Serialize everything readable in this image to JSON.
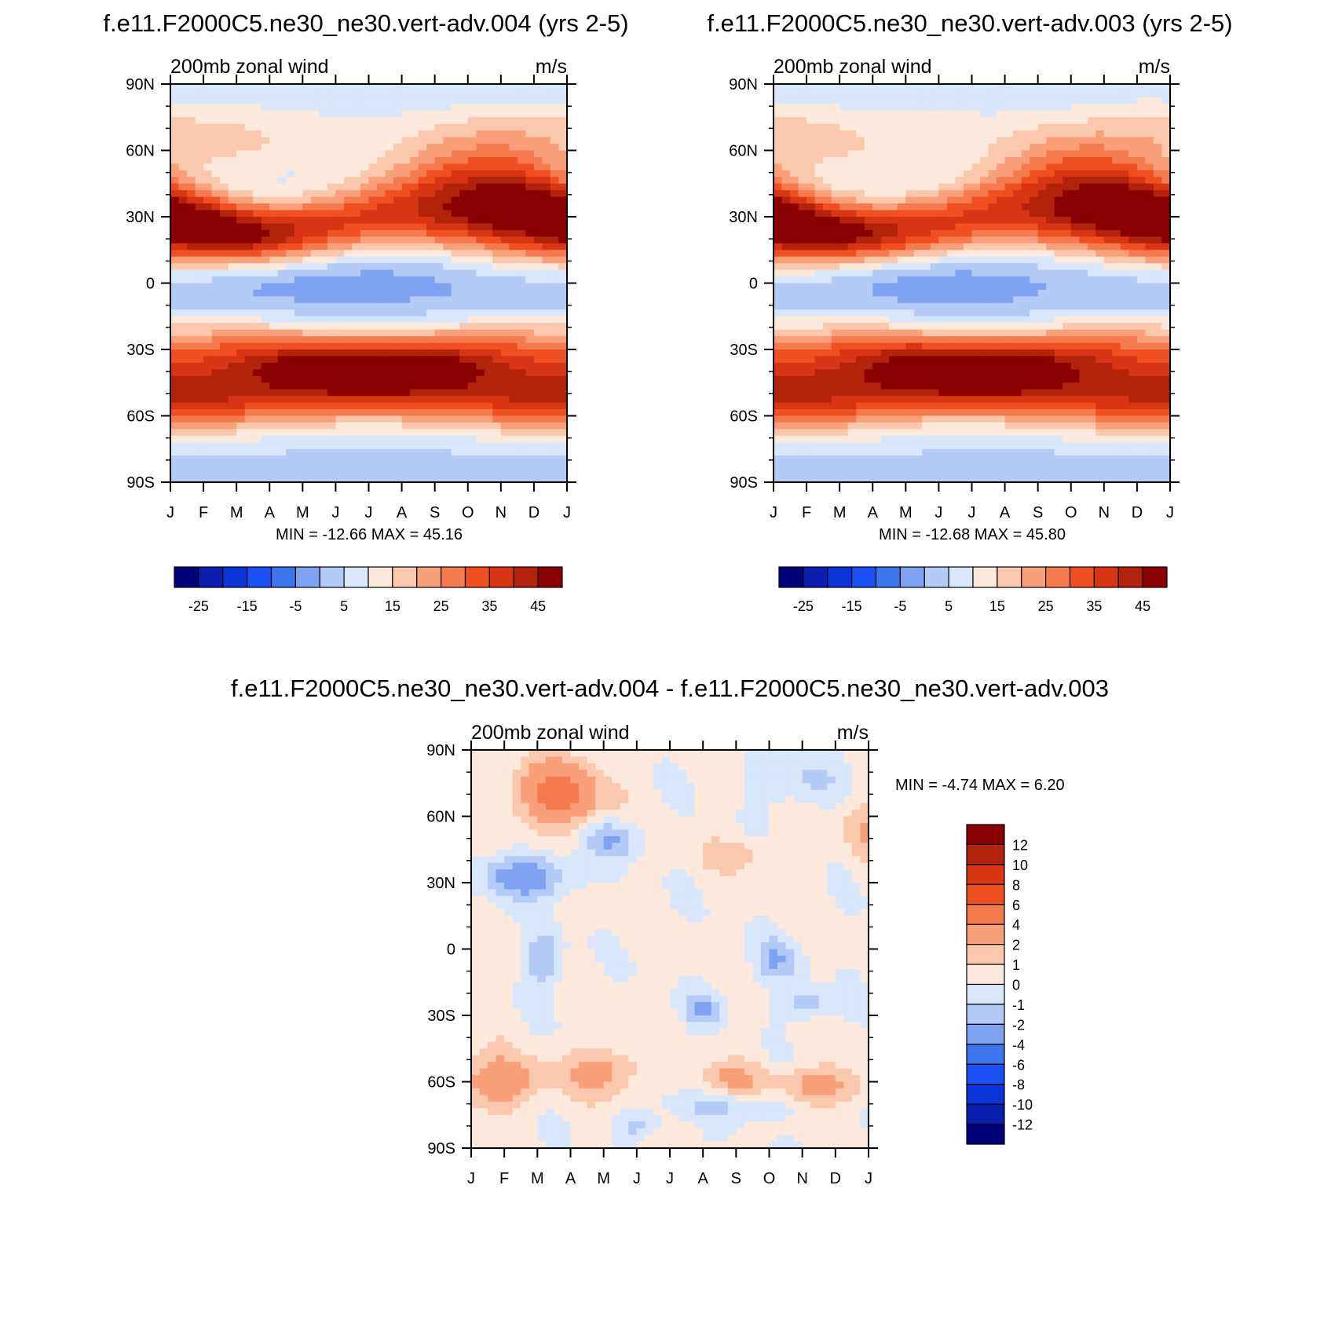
{
  "chart_data": [
    {
      "type": "heatmap",
      "title": "f.e11.F2000C5.ne30_ne30.vert-adv.004 (yrs 2-5)",
      "left_string": "200mb zonal wind",
      "right_string": "m/s",
      "x_ticks": [
        "J",
        "F",
        "M",
        "A",
        "M",
        "J",
        "J",
        "A",
        "S",
        "O",
        "N",
        "D",
        "J"
      ],
      "y_ticks": [
        "90N",
        "60N",
        "30N",
        "0",
        "30S",
        "60S",
        "90S"
      ],
      "stats": "MIN = -12.66 MAX =  45.16",
      "colorbar": {
        "orientation": "horizontal",
        "levels": [
          -30,
          -25,
          -20,
          -15,
          -10,
          -5,
          0,
          5,
          10,
          15,
          20,
          25,
          30,
          35,
          40,
          45
        ],
        "labels": [
          "-25",
          "-15",
          "-5",
          "5",
          "15",
          "25",
          "35",
          "45"
        ],
        "colors": [
          "#00007a",
          "#0a1fb0",
          "#0b35d6",
          "#1a50f5",
          "#3d75ee",
          "#7fa2f2",
          "#b4cbf8",
          "#d8e7fb",
          "#fde9dc",
          "#fbc8ad",
          "#f9a07a",
          "#f57b4f",
          "#f04f22",
          "#d73514",
          "#b3220a",
          "#8a0000"
        ]
      },
      "xlim": [
        0,
        12
      ],
      "ylim": [
        -90,
        90
      ],
      "max": 45.16
    },
    {
      "type": "heatmap",
      "title": "f.e11.F2000C5.ne30_ne30.vert-adv.003 (yrs 2-5)",
      "left_string": "200mb zonal wind",
      "right_string": "m/s",
      "x_ticks": [
        "J",
        "F",
        "M",
        "A",
        "M",
        "J",
        "J",
        "A",
        "S",
        "O",
        "N",
        "D",
        "J"
      ],
      "y_ticks": [
        "90N",
        "60N",
        "30N",
        "0",
        "30S",
        "60S",
        "90S"
      ],
      "stats": "MIN = -12.68 MAX =  45.80",
      "colorbar": {
        "orientation": "horizontal",
        "levels": [
          -30,
          -25,
          -20,
          -15,
          -10,
          -5,
          0,
          5,
          10,
          15,
          20,
          25,
          30,
          35,
          40,
          45
        ],
        "labels": [
          "-25",
          "-15",
          "-5",
          "5",
          "15",
          "25",
          "35",
          "45"
        ],
        "colors": [
          "#00007a",
          "#0a1fb0",
          "#0b35d6",
          "#1a50f5",
          "#3d75ee",
          "#7fa2f2",
          "#b4cbf8",
          "#d8e7fb",
          "#fde9dc",
          "#fbc8ad",
          "#f9a07a",
          "#f57b4f",
          "#f04f22",
          "#d73514",
          "#b3220a",
          "#8a0000"
        ]
      },
      "xlim": [
        0,
        12
      ],
      "ylim": [
        -90,
        90
      ],
      "max": 45.8
    },
    {
      "type": "heatmap",
      "title": "f.e11.F2000C5.ne30_ne30.vert-adv.004 - f.e11.F2000C5.ne30_ne30.vert-adv.003",
      "left_string": "200mb zonal wind",
      "right_string": "m/s",
      "x_ticks": [
        "J",
        "F",
        "M",
        "A",
        "M",
        "J",
        "J",
        "A",
        "S",
        "O",
        "N",
        "D",
        "J"
      ],
      "y_ticks": [
        "90N",
        "60N",
        "30N",
        "0",
        "30S",
        "60S",
        "90S"
      ],
      "stats": "MIN =  -4.74 MAX =   6.20",
      "colorbar": {
        "orientation": "vertical",
        "labels": [
          "12",
          "10",
          "8",
          "6",
          "4",
          "2",
          "1",
          "0",
          "-1",
          "-2",
          "-4",
          "-6",
          "-8",
          "-10",
          "-12"
        ],
        "colors": [
          "#8a0000",
          "#b3220a",
          "#d73514",
          "#f04f22",
          "#f57b4f",
          "#f9a07a",
          "#fbc8ad",
          "#fde9dc",
          "#d8e7fb",
          "#b4cbf8",
          "#7fa2f2",
          "#3d75ee",
          "#1a50f5",
          "#0b35d6",
          "#0a1fb0",
          "#00007a"
        ]
      },
      "xlim": [
        0,
        12
      ],
      "ylim": [
        -90,
        90
      ],
      "min": -4.74,
      "max": 6.2
    }
  ]
}
